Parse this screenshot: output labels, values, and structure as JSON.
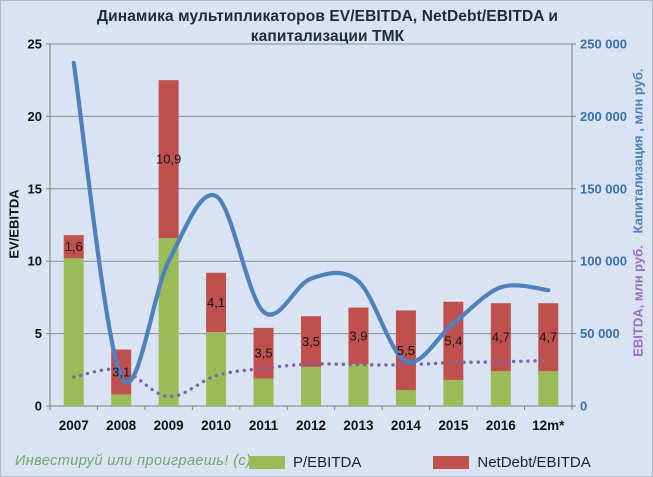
{
  "watermark": "Инвестируй или проиграешь! (с)",
  "chart_data": {
    "type": "combo (stacked bars + smooth lines)",
    "title_line1": "Динамика мультипликаторов EV/EBITDA, NetDebt/EBITDA и",
    "title_line2": "капитализации ТМК",
    "categories": [
      "2007",
      "2008",
      "2009",
      "2010",
      "2011",
      "2012",
      "2013",
      "2014",
      "2015",
      "2016",
      "12m*"
    ],
    "left_axis": {
      "label": "EV/EBITDA",
      "min": 0,
      "max": 25,
      "tick_values": [
        0,
        5,
        10,
        15,
        20,
        25
      ],
      "tick_labels": [
        "0",
        "5",
        "10",
        "15",
        "20",
        "25"
      ]
    },
    "right_axis": {
      "label_capitalization": "Капитализация , млн руб.",
      "label_ebitda": "EBITDA, млн руб.",
      "min": 0,
      "max": 250000,
      "tick_values": [
        0,
        50000,
        100000,
        150000,
        200000,
        250000
      ],
      "tick_labels": [
        "0",
        "50 000",
        "100 000",
        "150 000",
        "200 000",
        "250 000"
      ]
    },
    "series": [
      {
        "name": "P/EBITDA",
        "type": "bar-stacked",
        "axis": "left",
        "color": "#9BBB59",
        "values": [
          10.2,
          0.8,
          11.6,
          5.1,
          1.9,
          2.7,
          2.9,
          1.1,
          1.8,
          2.4,
          2.4
        ]
      },
      {
        "name": "NetDebt/EBITDA",
        "type": "bar-stacked",
        "axis": "left",
        "color": "#C0504D",
        "values": [
          1.6,
          3.1,
          10.9,
          4.1,
          3.5,
          3.5,
          3.9,
          5.5,
          5.4,
          4.7,
          4.7
        ],
        "labels": [
          "1,6",
          "3,1",
          "10,9",
          "4,1",
          "3,5",
          "3,5",
          "3,9",
          "5,5",
          "5,4",
          "4,7",
          "4,7"
        ]
      },
      {
        "name": "Капитализация, млн руб.",
        "type": "line-smooth",
        "axis": "right",
        "color": "#4F81BD",
        "values": [
          237000,
          20000,
          100000,
          145000,
          65000,
          88000,
          86000,
          31000,
          57000,
          82000,
          80000
        ]
      },
      {
        "name": "EBITDA, млн руб.",
        "type": "line-smooth-dotted",
        "axis": "right",
        "color": "#8064A2",
        "values": [
          20000,
          25000,
          6500,
          21000,
          26000,
          29000,
          28500,
          28500,
          30000,
          30500,
          31500
        ]
      }
    ],
    "legend": [
      "P/EBITDA",
      "NetDebt/EBITDA"
    ],
    "grid": true,
    "colors": {
      "background": "#D9E3F2",
      "gridline": "#8C8C8C",
      "axis": "#7F7F7F",
      "left_tick_text": "#121212",
      "right_tick_text": "#3A6FB0",
      "category_text": "#121212",
      "bar_label_text": "#141414"
    }
  }
}
